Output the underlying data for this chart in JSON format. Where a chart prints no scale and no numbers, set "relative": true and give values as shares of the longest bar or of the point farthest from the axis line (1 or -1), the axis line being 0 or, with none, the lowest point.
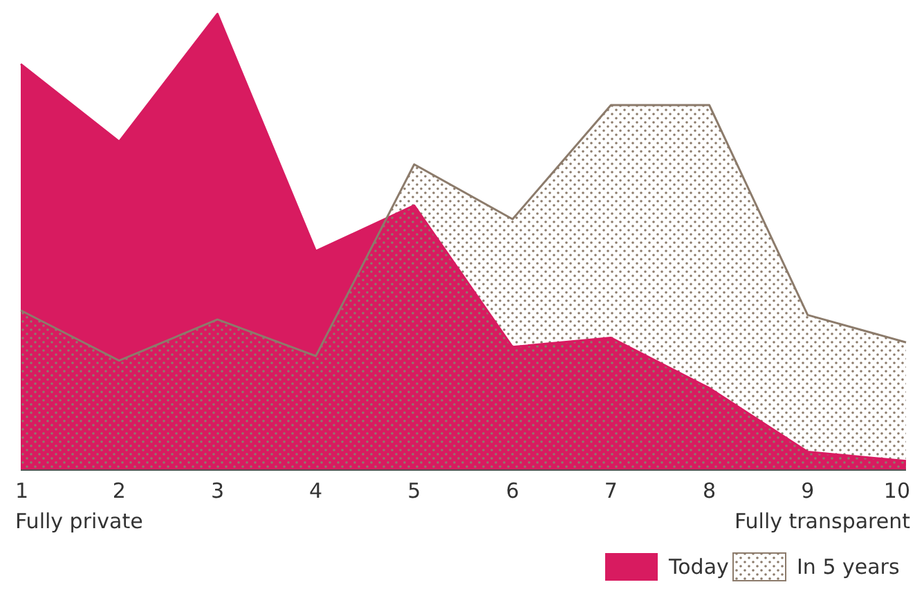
{
  "chart_data": {
    "type": "area",
    "relative": true,
    "categories": [
      "1",
      "2",
      "3",
      "4",
      "5",
      "6",
      "7",
      "8",
      "9",
      "10"
    ],
    "series": [
      {
        "name": "Today",
        "color": "#d81b60",
        "values": [
          0.89,
          0.72,
          1,
          0.48,
          0.58,
          0.27,
          0.29,
          0.18,
          0.04,
          0.02
        ]
      },
      {
        "name": "In 5 years",
        "color": "#8c7b6b",
        "values": [
          0.35,
          0.24,
          0.33,
          0.25,
          0.67,
          0.55,
          0.8,
          0.8,
          0.34,
          0.28
        ]
      }
    ],
    "annotations": [
      "Fully private",
      "Fully transparent"
    ],
    "legend": "bottom right",
    "grid": false
  }
}
